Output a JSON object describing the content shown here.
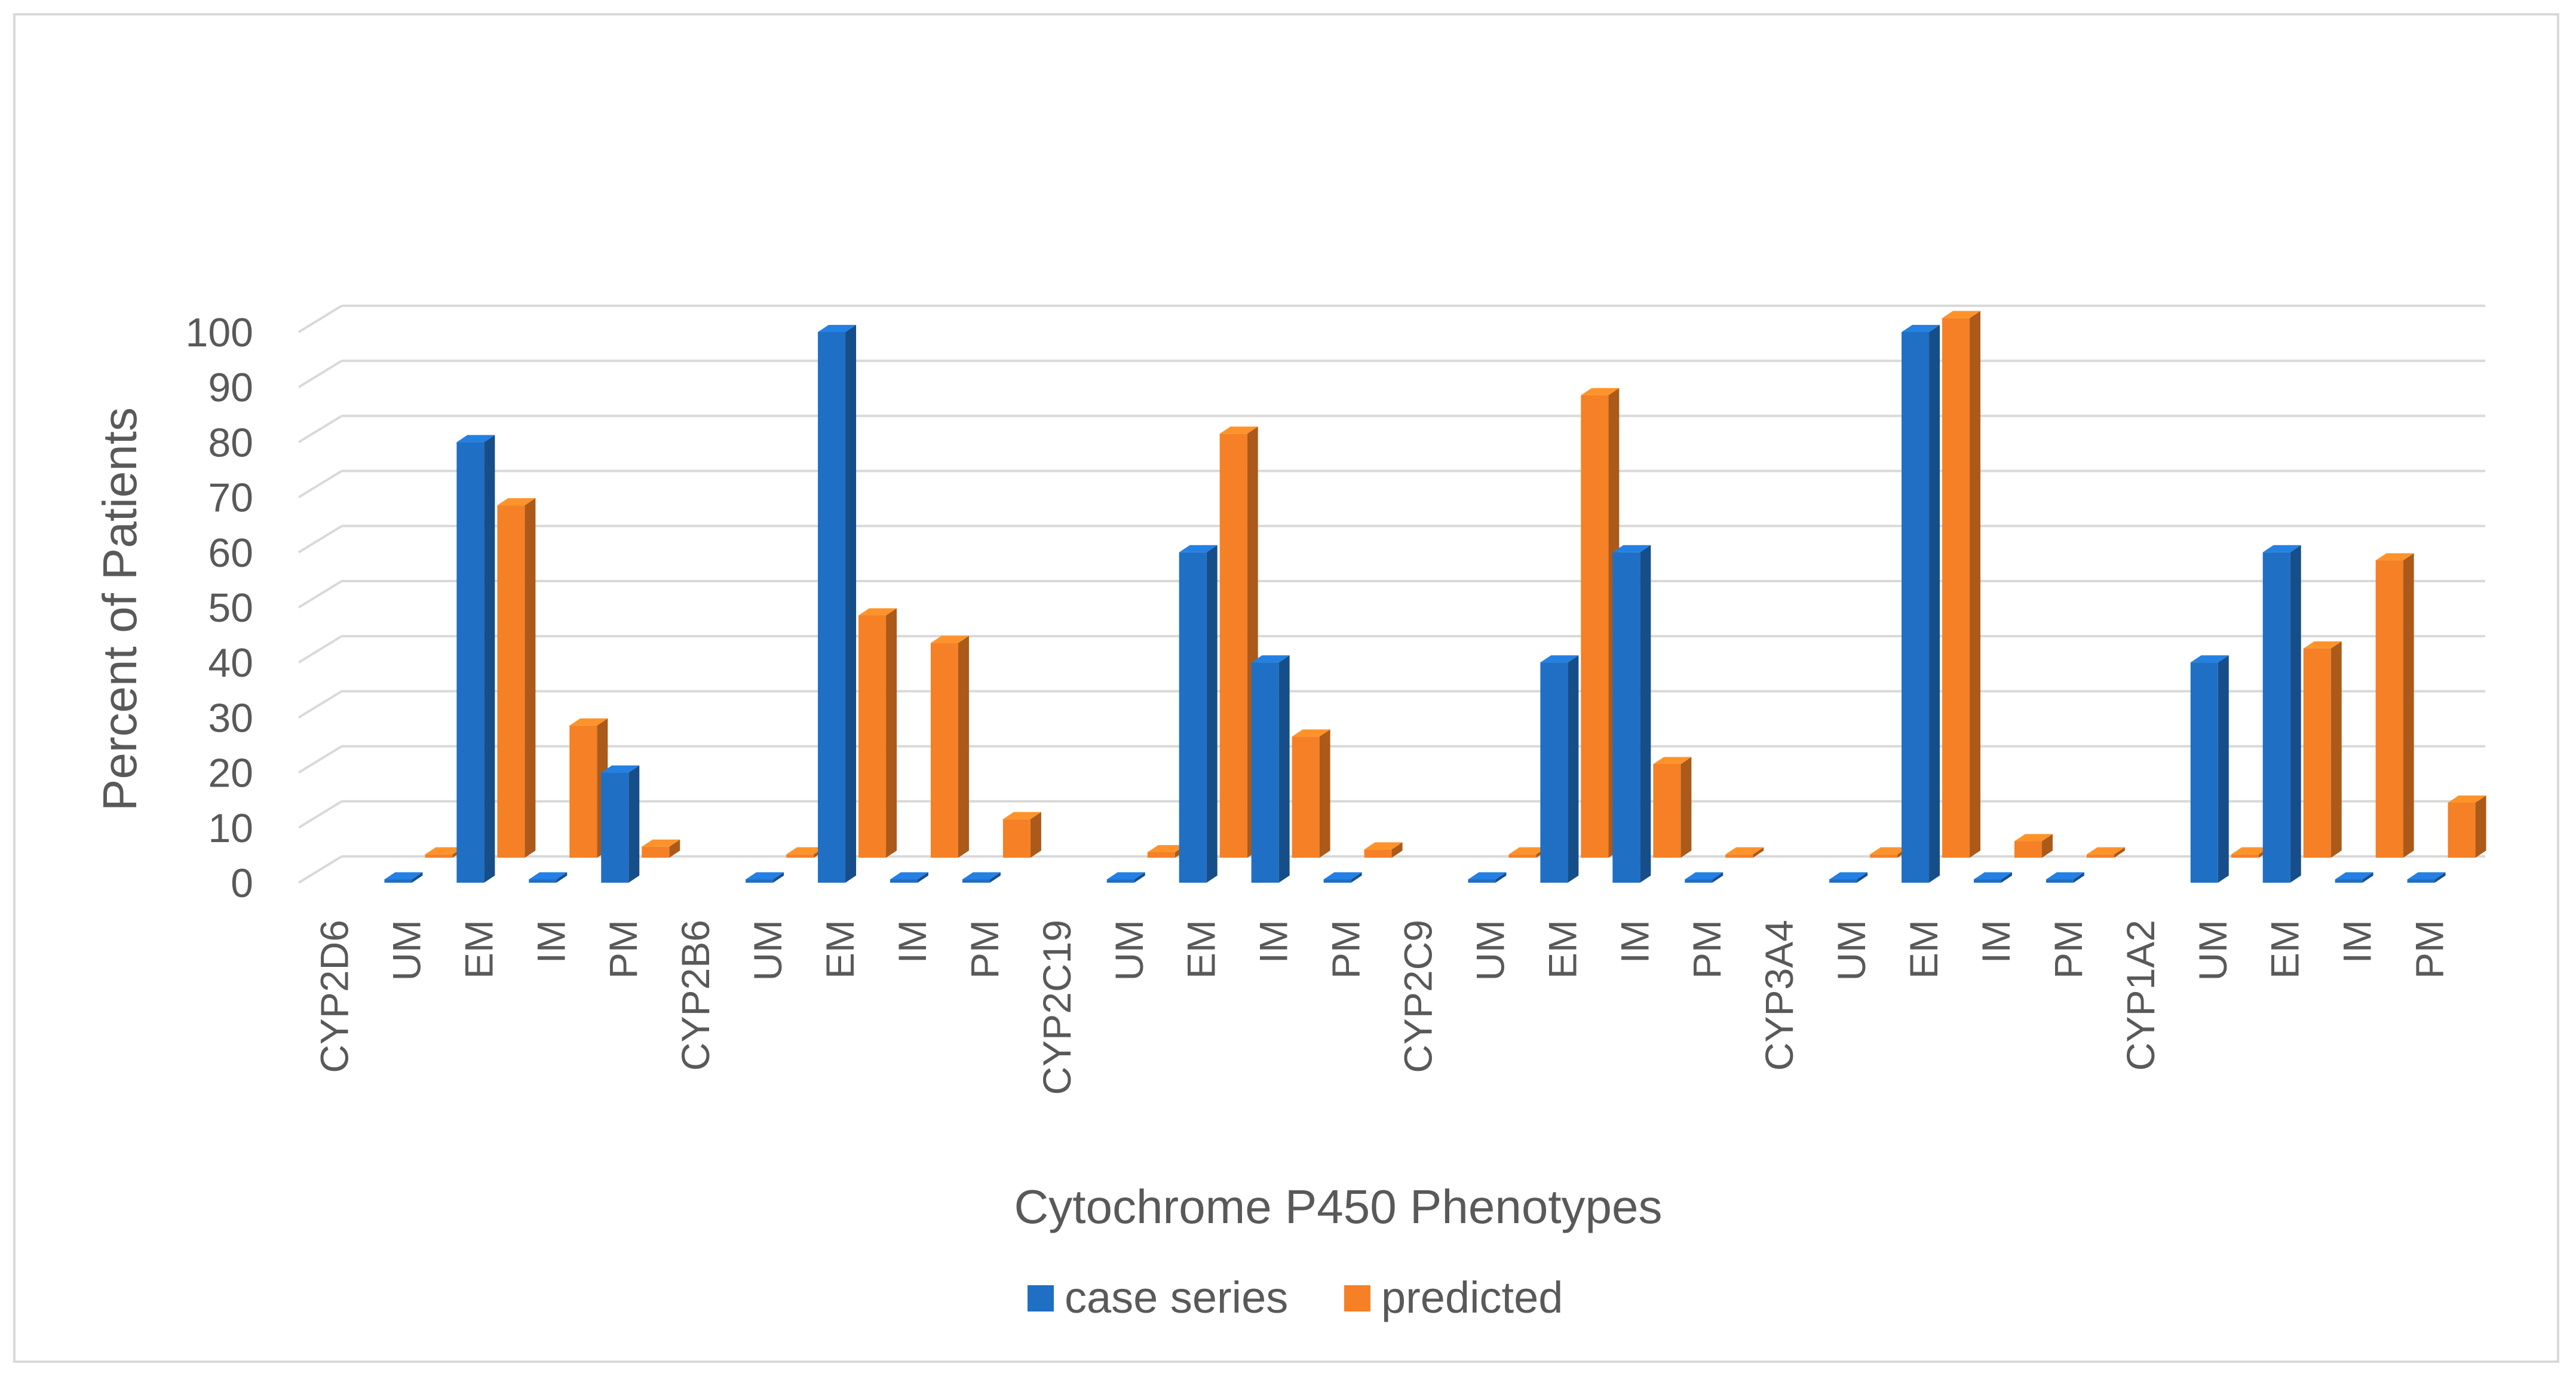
{
  "chart_data": {
    "type": "bar",
    "title": "",
    "xlabel": "Cytochrome P450 Phenotypes",
    "ylabel": "Percent of Patients",
    "ylim": [
      0,
      100
    ],
    "yticks": [
      "0",
      "10",
      "20",
      "30",
      "40",
      "50",
      "60",
      "70",
      "80",
      "90",
      "100"
    ],
    "grid": true,
    "legend_position": "bottom",
    "categories": [
      "CYP2D6",
      "UM",
      "EM",
      "IM",
      "PM",
      "CYP2B6",
      "UM",
      "EM",
      "IM",
      "PM",
      "CYP2C19",
      "UM",
      "EM",
      "IM",
      "PM",
      "CYP2C9",
      "UM",
      "EM",
      "IM",
      "PM",
      "CYP3A4",
      "UM",
      "EM",
      "IM",
      "PM",
      "CYP1A2",
      "UM",
      "EM",
      "IM",
      "PM"
    ],
    "series": [
      {
        "name": "case series",
        "color": "#1f6fc5",
        "values": [
          null,
          0,
          80,
          0,
          20,
          null,
          0,
          100,
          0,
          0,
          null,
          0,
          60,
          40,
          0,
          null,
          0,
          40,
          60,
          0,
          null,
          0,
          100,
          0,
          0,
          null,
          40,
          60,
          0,
          0
        ]
      },
      {
        "name": "predicted",
        "color": "#f58025",
        "values": [
          null,
          0.5,
          64,
          24,
          2,
          null,
          0.5,
          44,
          39,
          7,
          null,
          1,
          77,
          22,
          1.5,
          null,
          0.5,
          84,
          17,
          0.5,
          null,
          0.5,
          98,
          3,
          0.5,
          null,
          0.5,
          38,
          54,
          10
        ]
      }
    ]
  }
}
